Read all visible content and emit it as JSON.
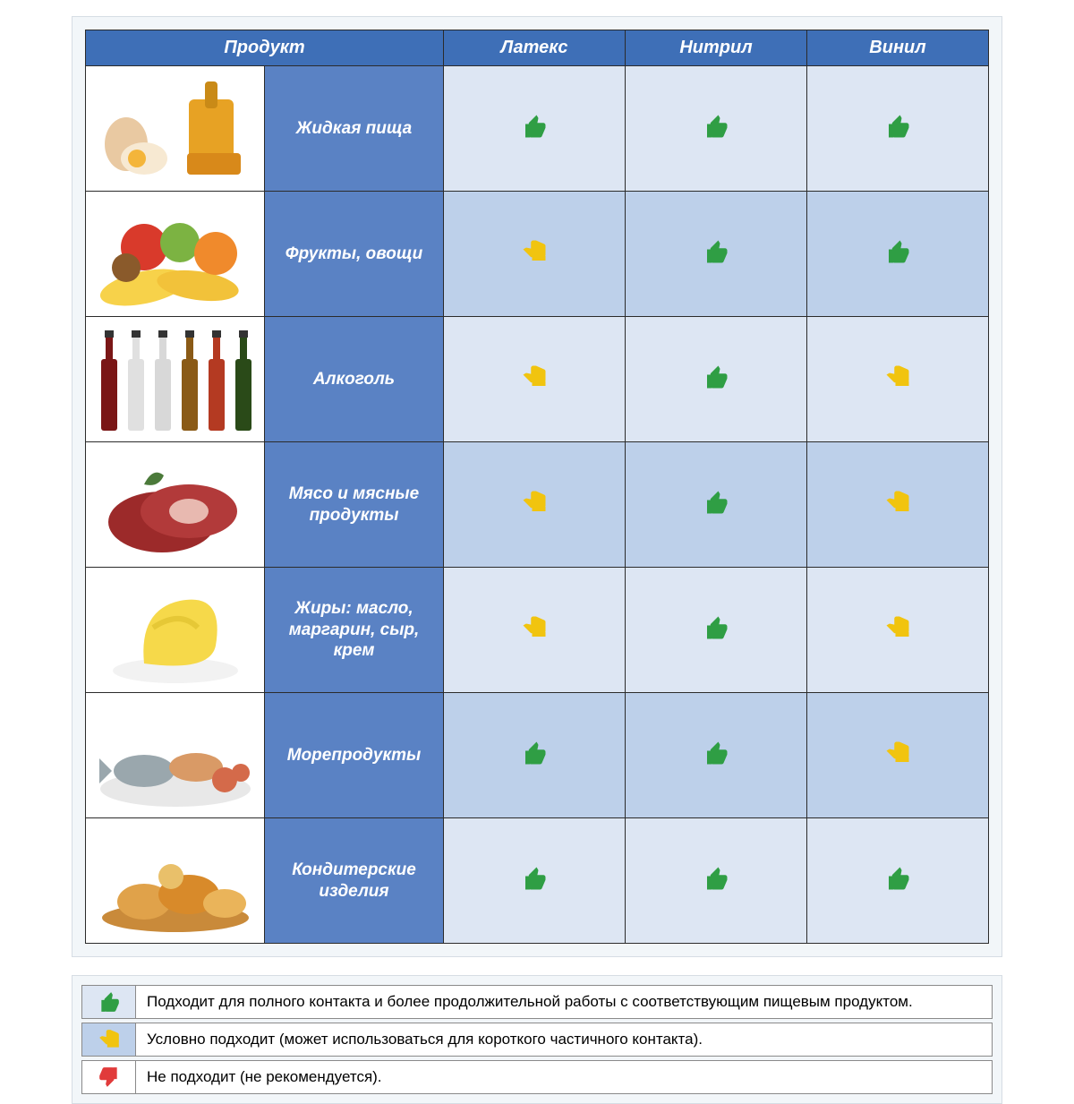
{
  "colors": {
    "header_bg": "#3e6fb7",
    "label_bg": "#5a82c4",
    "band_light": "#dde6f3",
    "band_dark": "#bdd0ea",
    "panel_bg": "#f2f6f9",
    "panel_border": "#d6dde4",
    "cell_border": "#2b2b2b",
    "icon_good": "#2f9e44",
    "icon_cond": "#f1c40f",
    "icon_bad": "#e13b3b"
  },
  "headers": {
    "product": "Продукт",
    "cols": [
      "Латекс",
      "Нитрил",
      "Винил"
    ]
  },
  "rows": [
    {
      "id": "liquid-food",
      "label": "Жидкая пища",
      "illus": "eggs-honey",
      "ratings": [
        "good",
        "good",
        "good"
      ]
    },
    {
      "id": "fruits-veg",
      "label": "Фрукты, овощи",
      "illus": "fruits",
      "ratings": [
        "cond",
        "good",
        "good"
      ]
    },
    {
      "id": "alcohol",
      "label": "Алкоголь",
      "illus": "bottles",
      "ratings": [
        "cond",
        "good",
        "cond"
      ]
    },
    {
      "id": "meat",
      "label": "Мясо и мясные продукты",
      "illus": "meat",
      "ratings": [
        "cond",
        "good",
        "cond"
      ]
    },
    {
      "id": "fats",
      "label": "Жиры: масло, маргарин, сыр, крем",
      "illus": "butter",
      "ratings": [
        "cond",
        "good",
        "cond"
      ]
    },
    {
      "id": "seafood",
      "label": "Морепродукты",
      "illus": "seafood",
      "ratings": [
        "good",
        "good",
        "cond"
      ]
    },
    {
      "id": "confectionery",
      "label": "Кондитерские изделия",
      "illus": "bread",
      "ratings": [
        "good",
        "good",
        "good"
      ]
    }
  ],
  "legend": [
    {
      "icon": "good",
      "text": "Подходит для полного контакта и более продолжительной работы с соответствующим пищевым продуктом."
    },
    {
      "icon": "cond",
      "text": "Условно подходит (может использоваться для короткого частичного контакта)."
    },
    {
      "icon": "bad",
      "text": "Не подходит (не рекомендуется)."
    }
  ],
  "icon_size": {
    "table": 30,
    "legend": 26
  }
}
